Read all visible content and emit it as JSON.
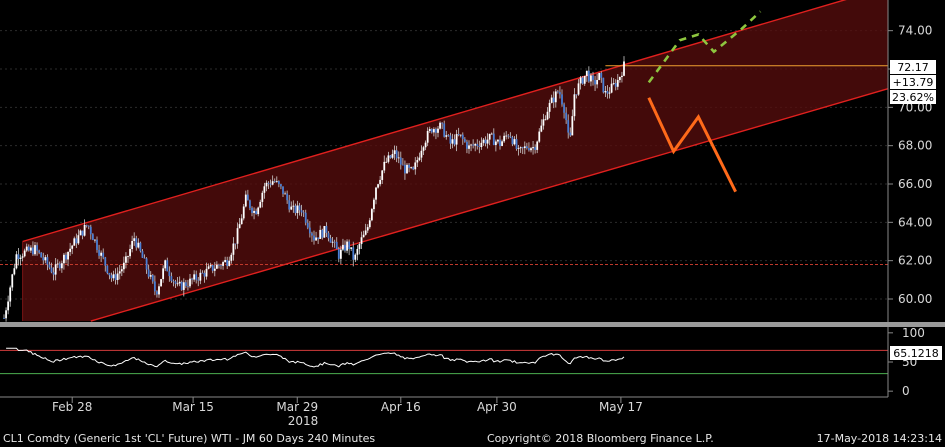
{
  "chart_data": [
    {
      "type": "candlestick",
      "yticks": [
        "60.00",
        "62.00",
        "64.00",
        "66.00",
        "68.00",
        "70.00",
        "72.00",
        "74.00"
      ],
      "ylim": [
        58.8,
        75.6
      ],
      "xticks": [
        "Feb 28",
        "Mar 15",
        "Mar 29",
        "Apr 16",
        "Apr 30",
        "May 17"
      ],
      "year_label": "2018",
      "last_price": "72.17",
      "change": "+13.79",
      "change_pct": "23.62%",
      "price_path": [
        {
          "t": 0.0,
          "v": 59.0
        },
        {
          "t": 0.02,
          "v": 62.3
        },
        {
          "t": 0.05,
          "v": 62.6
        },
        {
          "t": 0.08,
          "v": 61.4
        },
        {
          "t": 0.11,
          "v": 62.8
        },
        {
          "t": 0.135,
          "v": 63.9
        },
        {
          "t": 0.155,
          "v": 62.4
        },
        {
          "t": 0.175,
          "v": 61.0
        },
        {
          "t": 0.195,
          "v": 61.8
        },
        {
          "t": 0.21,
          "v": 63.2
        },
        {
          "t": 0.23,
          "v": 61.6
        },
        {
          "t": 0.245,
          "v": 60.3
        },
        {
          "t": 0.26,
          "v": 61.8
        },
        {
          "t": 0.28,
          "v": 60.6
        },
        {
          "t": 0.3,
          "v": 60.9
        },
        {
          "t": 0.33,
          "v": 61.5
        },
        {
          "t": 0.36,
          "v": 62.0
        },
        {
          "t": 0.375,
          "v": 63.2
        },
        {
          "t": 0.39,
          "v": 65.2
        },
        {
          "t": 0.405,
          "v": 64.5
        },
        {
          "t": 0.42,
          "v": 65.9
        },
        {
          "t": 0.435,
          "v": 66.2
        },
        {
          "t": 0.45,
          "v": 65.6
        },
        {
          "t": 0.465,
          "v": 64.6
        },
        {
          "t": 0.48,
          "v": 64.7
        },
        {
          "t": 0.5,
          "v": 63.2
        },
        {
          "t": 0.52,
          "v": 63.6
        },
        {
          "t": 0.54,
          "v": 62.3
        },
        {
          "t": 0.555,
          "v": 62.9
        },
        {
          "t": 0.565,
          "v": 62.0
        },
        {
          "t": 0.575,
          "v": 63.0
        },
        {
          "t": 0.585,
          "v": 63.5
        },
        {
          "t": 0.6,
          "v": 65.9
        },
        {
          "t": 0.615,
          "v": 67.1
        },
        {
          "t": 0.63,
          "v": 67.6
        },
        {
          "t": 0.645,
          "v": 66.8
        },
        {
          "t": 0.66,
          "v": 66.6
        },
        {
          "t": 0.675,
          "v": 68.1
        },
        {
          "t": 0.69,
          "v": 68.9
        },
        {
          "t": 0.705,
          "v": 69.0
        },
        {
          "t": 0.72,
          "v": 68.1
        },
        {
          "t": 0.735,
          "v": 68.5
        },
        {
          "t": 0.75,
          "v": 67.9
        },
        {
          "t": 0.77,
          "v": 68.2
        },
        {
          "t": 0.785,
          "v": 68.4
        },
        {
          "t": 0.8,
          "v": 68.1
        },
        {
          "t": 0.815,
          "v": 68.7
        },
        {
          "t": 0.83,
          "v": 67.6
        },
        {
          "t": 0.845,
          "v": 68.0
        },
        {
          "t": 0.855,
          "v": 67.9
        },
        {
          "t": 0.865,
          "v": 68.8
        },
        {
          "t": 0.875,
          "v": 69.8
        },
        {
          "t": 0.885,
          "v": 70.4
        },
        {
          "t": 0.895,
          "v": 70.9
        },
        {
          "t": 0.905,
          "v": 69.8
        },
        {
          "t": 0.912,
          "v": 67.9
        },
        {
          "t": 0.92,
          "v": 70.7
        },
        {
          "t": 0.93,
          "v": 71.3
        },
        {
          "t": 0.94,
          "v": 71.8
        },
        {
          "t": 0.95,
          "v": 71.2
        },
        {
          "t": 0.96,
          "v": 71.6
        },
        {
          "t": 0.97,
          "v": 70.7
        },
        {
          "t": 0.98,
          "v": 71.0
        },
        {
          "t": 0.99,
          "v": 71.4
        },
        {
          "t": 1.0,
          "v": 72.17
        }
      ],
      "channel": [
        {
          "name": "upper",
          "from": {
            "t": 0.03,
            "v": 63.0
          },
          "to": {
            "t": 1.45,
            "v": 76.5
          }
        },
        {
          "name": "lower",
          "from": {
            "t": 0.14,
            "v": 58.85
          },
          "to": {
            "t": 1.45,
            "v": 71.2
          }
        }
      ],
      "horizontal_lines": [
        {
          "v": 72.17,
          "color": "#f0a030"
        },
        {
          "v": 61.8,
          "color": "#c0392b"
        }
      ],
      "annotations": [
        {
          "name": "bearish-zigzag",
          "color": "#ff6a1a",
          "style": "solid",
          "points": [
            {
              "t": 1.04,
              "v": 70.5
            },
            {
              "t": 1.08,
              "v": 67.7
            },
            {
              "t": 1.12,
              "v": 69.5
            },
            {
              "t": 1.18,
              "v": 65.6
            }
          ]
        },
        {
          "name": "bullish-zigzag",
          "color": "#8ec63f",
          "style": "dashed",
          "points": [
            {
              "t": 1.04,
              "v": 71.3
            },
            {
              "t": 1.09,
              "v": 73.5
            },
            {
              "t": 1.12,
              "v": 73.8
            },
            {
              "t": 1.145,
              "v": 72.9
            },
            {
              "t": 1.19,
              "v": 74.1
            },
            {
              "t": 1.22,
              "v": 75.0
            }
          ]
        }
      ]
    },
    {
      "type": "line",
      "name": "RSI",
      "yticks": [
        "100",
        "50",
        "0"
      ],
      "ylim": [
        -10,
        110
      ],
      "last_value": "65.1218",
      "levels": [
        {
          "v": 70,
          "color": "#d23b3b"
        },
        {
          "v": 30,
          "color": "#4caf50"
        }
      ]
    }
  ],
  "footer": {
    "security": "CL1 Comdty (Generic 1st 'CL' Future) WTI - JM 60 Days 240 Minutes",
    "copyright": "Copyright© 2018 Bloomberg Finance L.P.",
    "timestamp": "17-May-2018 14:23:14"
  }
}
